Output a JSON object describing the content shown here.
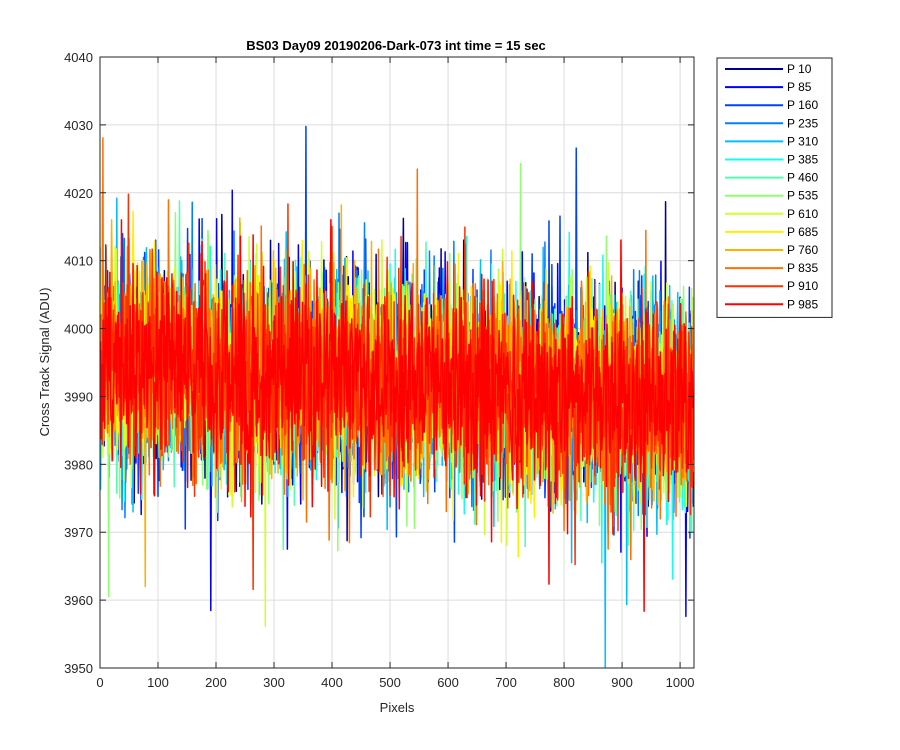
{
  "chart_data": {
    "type": "line",
    "title": "BS03 Day09 20190206-Dark-073 int time = 15 sec",
    "xlabel": "Pixels",
    "ylabel": "Cross Track Signal (ADU)",
    "xlim": [
      0,
      1024
    ],
    "ylim": [
      3950,
      4040
    ],
    "xticks": [
      0,
      100,
      200,
      300,
      400,
      500,
      600,
      700,
      800,
      900,
      1000
    ],
    "yticks": [
      3950,
      3960,
      3970,
      3980,
      3990,
      4000,
      4010,
      4020,
      4030,
      4040
    ],
    "grid": true,
    "legend_position": "outside-top-right",
    "series": [
      {
        "name": "P 10",
        "color": "#00008f",
        "mean": 3993,
        "stdev": 7.2
      },
      {
        "name": "P 85",
        "color": "#0000ff",
        "mean": 3993,
        "stdev": 7.2
      },
      {
        "name": "P 160",
        "color": "#0040ff",
        "mean": 3993,
        "stdev": 7.2
      },
      {
        "name": "P 235",
        "color": "#0080ff",
        "mean": 3993,
        "stdev": 7.2
      },
      {
        "name": "P 310",
        "color": "#00bfff",
        "mean": 3993,
        "stdev": 7.2
      },
      {
        "name": "P 385",
        "color": "#10ffef",
        "mean": 3993,
        "stdev": 7.2
      },
      {
        "name": "P 460",
        "color": "#50ffaf",
        "mean": 3993,
        "stdev": 7.2
      },
      {
        "name": "P 535",
        "color": "#8fff70",
        "mean": 3993,
        "stdev": 7.2
      },
      {
        "name": "P 610",
        "color": "#cfff30",
        "mean": 3993,
        "stdev": 7.2
      },
      {
        "name": "P 685",
        "color": "#ffef00",
        "mean": 3993,
        "stdev": 7.2
      },
      {
        "name": "P 760",
        "color": "#ffb000",
        "mean": 3993,
        "stdev": 7.2
      },
      {
        "name": "P 835",
        "color": "#ff7000",
        "mean": 3993,
        "stdev": 7.2
      },
      {
        "name": "P 910",
        "color": "#ff3000",
        "mean": 3993,
        "stdev": 7.2
      },
      {
        "name": "P 985",
        "color": "#ff0000",
        "mean": 3993,
        "stdev": 7.2
      }
    ],
    "trend": {
      "start": 3995,
      "end": 3989
    },
    "points_per_series": 1024
  }
}
